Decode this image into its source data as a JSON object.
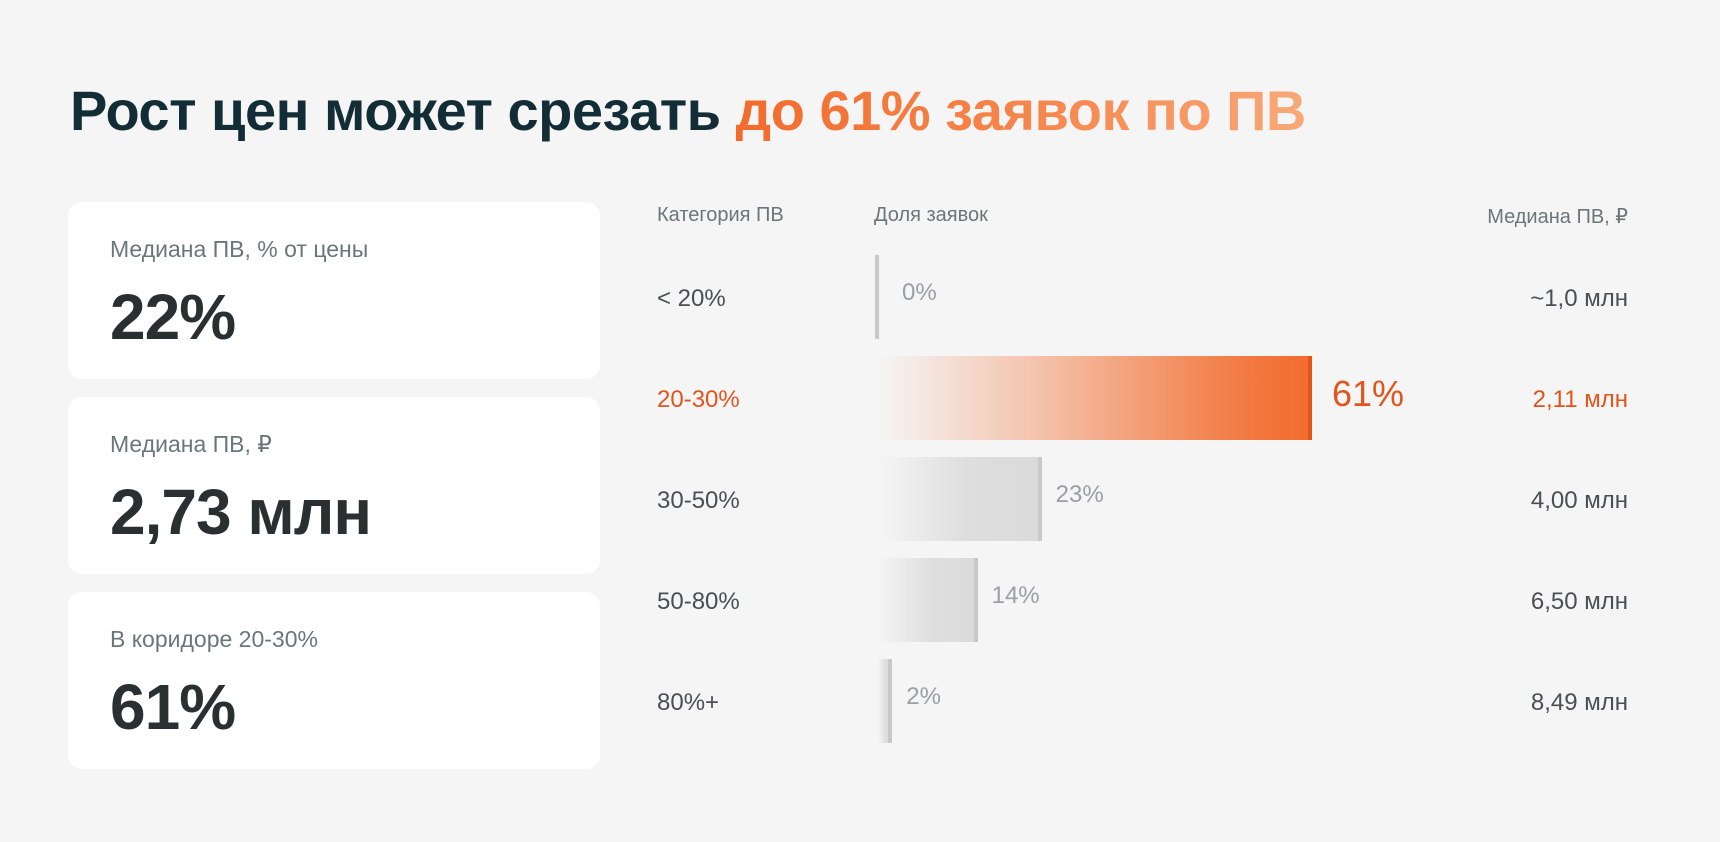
{
  "header": {
    "title_main": "Рост цен может срезать",
    "title_accent": "до 61% заявок по ПВ"
  },
  "cards": [
    {
      "label": "Медиана ПВ, % от цены",
      "value": "22%"
    },
    {
      "label": "Медиана ПВ, ₽",
      "value": "2,73 млн"
    },
    {
      "label": "В коридоре 20-30%",
      "value": "61%"
    }
  ],
  "chart_data": {
    "type": "bar",
    "orientation": "horizontal",
    "title": "",
    "columns": [
      "Категория ПВ",
      "Доля заявок",
      "Медиана ПВ, ₽"
    ],
    "categories": [
      "< 20%",
      "20-30%",
      "30-50%",
      "50-80%",
      "80%+"
    ],
    "values": [
      0,
      61,
      23,
      14,
      2
    ],
    "value_labels": [
      "0%",
      "61%",
      "23%",
      "14%",
      "2%"
    ],
    "medians": [
      "~1,0 млн",
      "2,11 млн",
      "4,00 млн",
      "6,50 млн",
      "8,49 млн"
    ],
    "highlight_index": 1,
    "xlim": [
      0,
      61
    ],
    "colors": {
      "highlight": "#f26b2c",
      "highlight_text": "#e2541c",
      "bar": "#d6d6d6"
    }
  }
}
